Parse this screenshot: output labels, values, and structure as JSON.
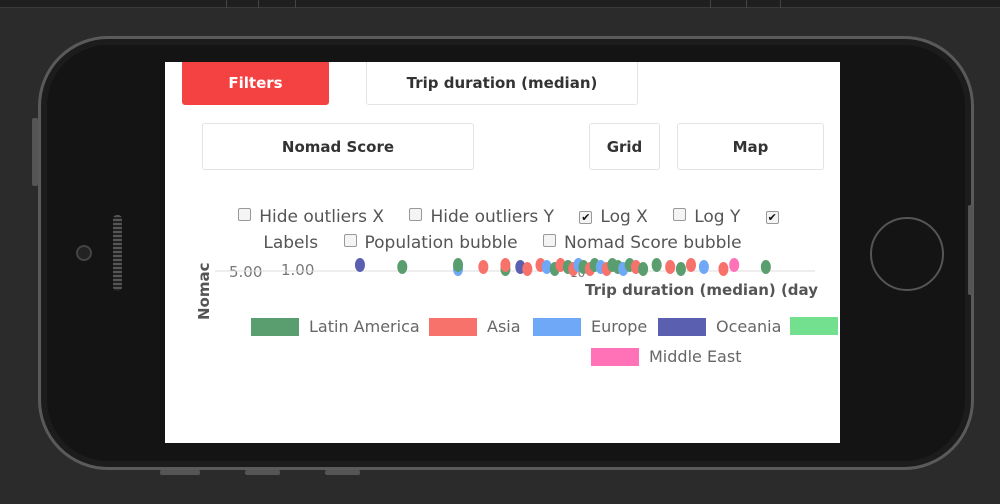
{
  "screen": {
    "buttons": {
      "filters": "Filters",
      "trip_duration": "Trip duration (median)",
      "nomad_score": "Nomad Score",
      "grid": "Grid",
      "map": "Map"
    },
    "options": [
      {
        "label": "Hide outliers X",
        "checked": false
      },
      {
        "label": "Hide outliers Y",
        "checked": false
      },
      {
        "label": "Log X",
        "checked": true
      },
      {
        "label": "Log Y",
        "checked": false
      },
      {
        "label": "Labels",
        "checked": true
      },
      {
        "label": "Population bubble",
        "checked": false
      },
      {
        "label": "Nomad Score bubble",
        "checked": false
      }
    ],
    "accent": "#f44242"
  },
  "chart_data": {
    "type": "scatter",
    "xlabel": "Trip duration (median) (day",
    "ylabel": "Nomac",
    "x_scale": "log",
    "y_ticks": [
      "5.00",
      "1.00"
    ],
    "x_ticks": [
      "10"
    ],
    "legend": [
      {
        "name": "Latin America",
        "color": "#5a9e6f"
      },
      {
        "name": "Asia",
        "color": "#f7726b"
      },
      {
        "name": "Europe",
        "color": "#6fa8f7"
      },
      {
        "name": "Oceania",
        "color": "#5a5fb0"
      },
      {
        "name": "",
        "color": "#72e08f"
      },
      {
        "name": "Middle East",
        "color": "#ff72b8"
      }
    ],
    "points": [
      {
        "x": 2.9,
        "r": "Oceania"
      },
      {
        "x": 3.7,
        "r": "Latin America"
      },
      {
        "x": 5.1,
        "r": "Europe"
      },
      {
        "x": 5.1,
        "r": "Latin America"
      },
      {
        "x": 5.9,
        "r": "Asia"
      },
      {
        "x": 6.7,
        "r": "Latin America"
      },
      {
        "x": 6.7,
        "r": "Asia"
      },
      {
        "x": 7.3,
        "r": "Oceania"
      },
      {
        "x": 7.6,
        "r": "Asia"
      },
      {
        "x": 8.2,
        "r": "Asia"
      },
      {
        "x": 8.5,
        "r": "Europe"
      },
      {
        "x": 8.9,
        "r": "Latin America"
      },
      {
        "x": 9.2,
        "r": "Asia"
      },
      {
        "x": 9.6,
        "r": "Latin America"
      },
      {
        "x": 9.9,
        "r": "Asia"
      },
      {
        "x": 10.2,
        "r": "Europe"
      },
      {
        "x": 10.5,
        "r": "Latin America"
      },
      {
        "x": 10.9,
        "r": "Asia"
      },
      {
        "x": 11.2,
        "r": "Latin America"
      },
      {
        "x": 11.6,
        "r": "Europe"
      },
      {
        "x": 12,
        "r": "Asia"
      },
      {
        "x": 12.4,
        "r": "Latin America"
      },
      {
        "x": 12.8,
        "r": "Latin America"
      },
      {
        "x": 13.2,
        "r": "Europe"
      },
      {
        "x": 13.7,
        "r": "Latin America"
      },
      {
        "x": 14.2,
        "r": "Asia"
      },
      {
        "x": 14.8,
        "r": "Latin America"
      },
      {
        "x": 16,
        "r": "Latin America"
      },
      {
        "x": 17.3,
        "r": "Asia"
      },
      {
        "x": 18.4,
        "r": "Latin America"
      },
      {
        "x": 19.5,
        "r": "Asia"
      },
      {
        "x": 21,
        "r": "Europe"
      },
      {
        "x": 23.5,
        "r": "Asia"
      },
      {
        "x": 25,
        "r": "Middle East"
      },
      {
        "x": 30,
        "r": "Latin America"
      }
    ]
  }
}
